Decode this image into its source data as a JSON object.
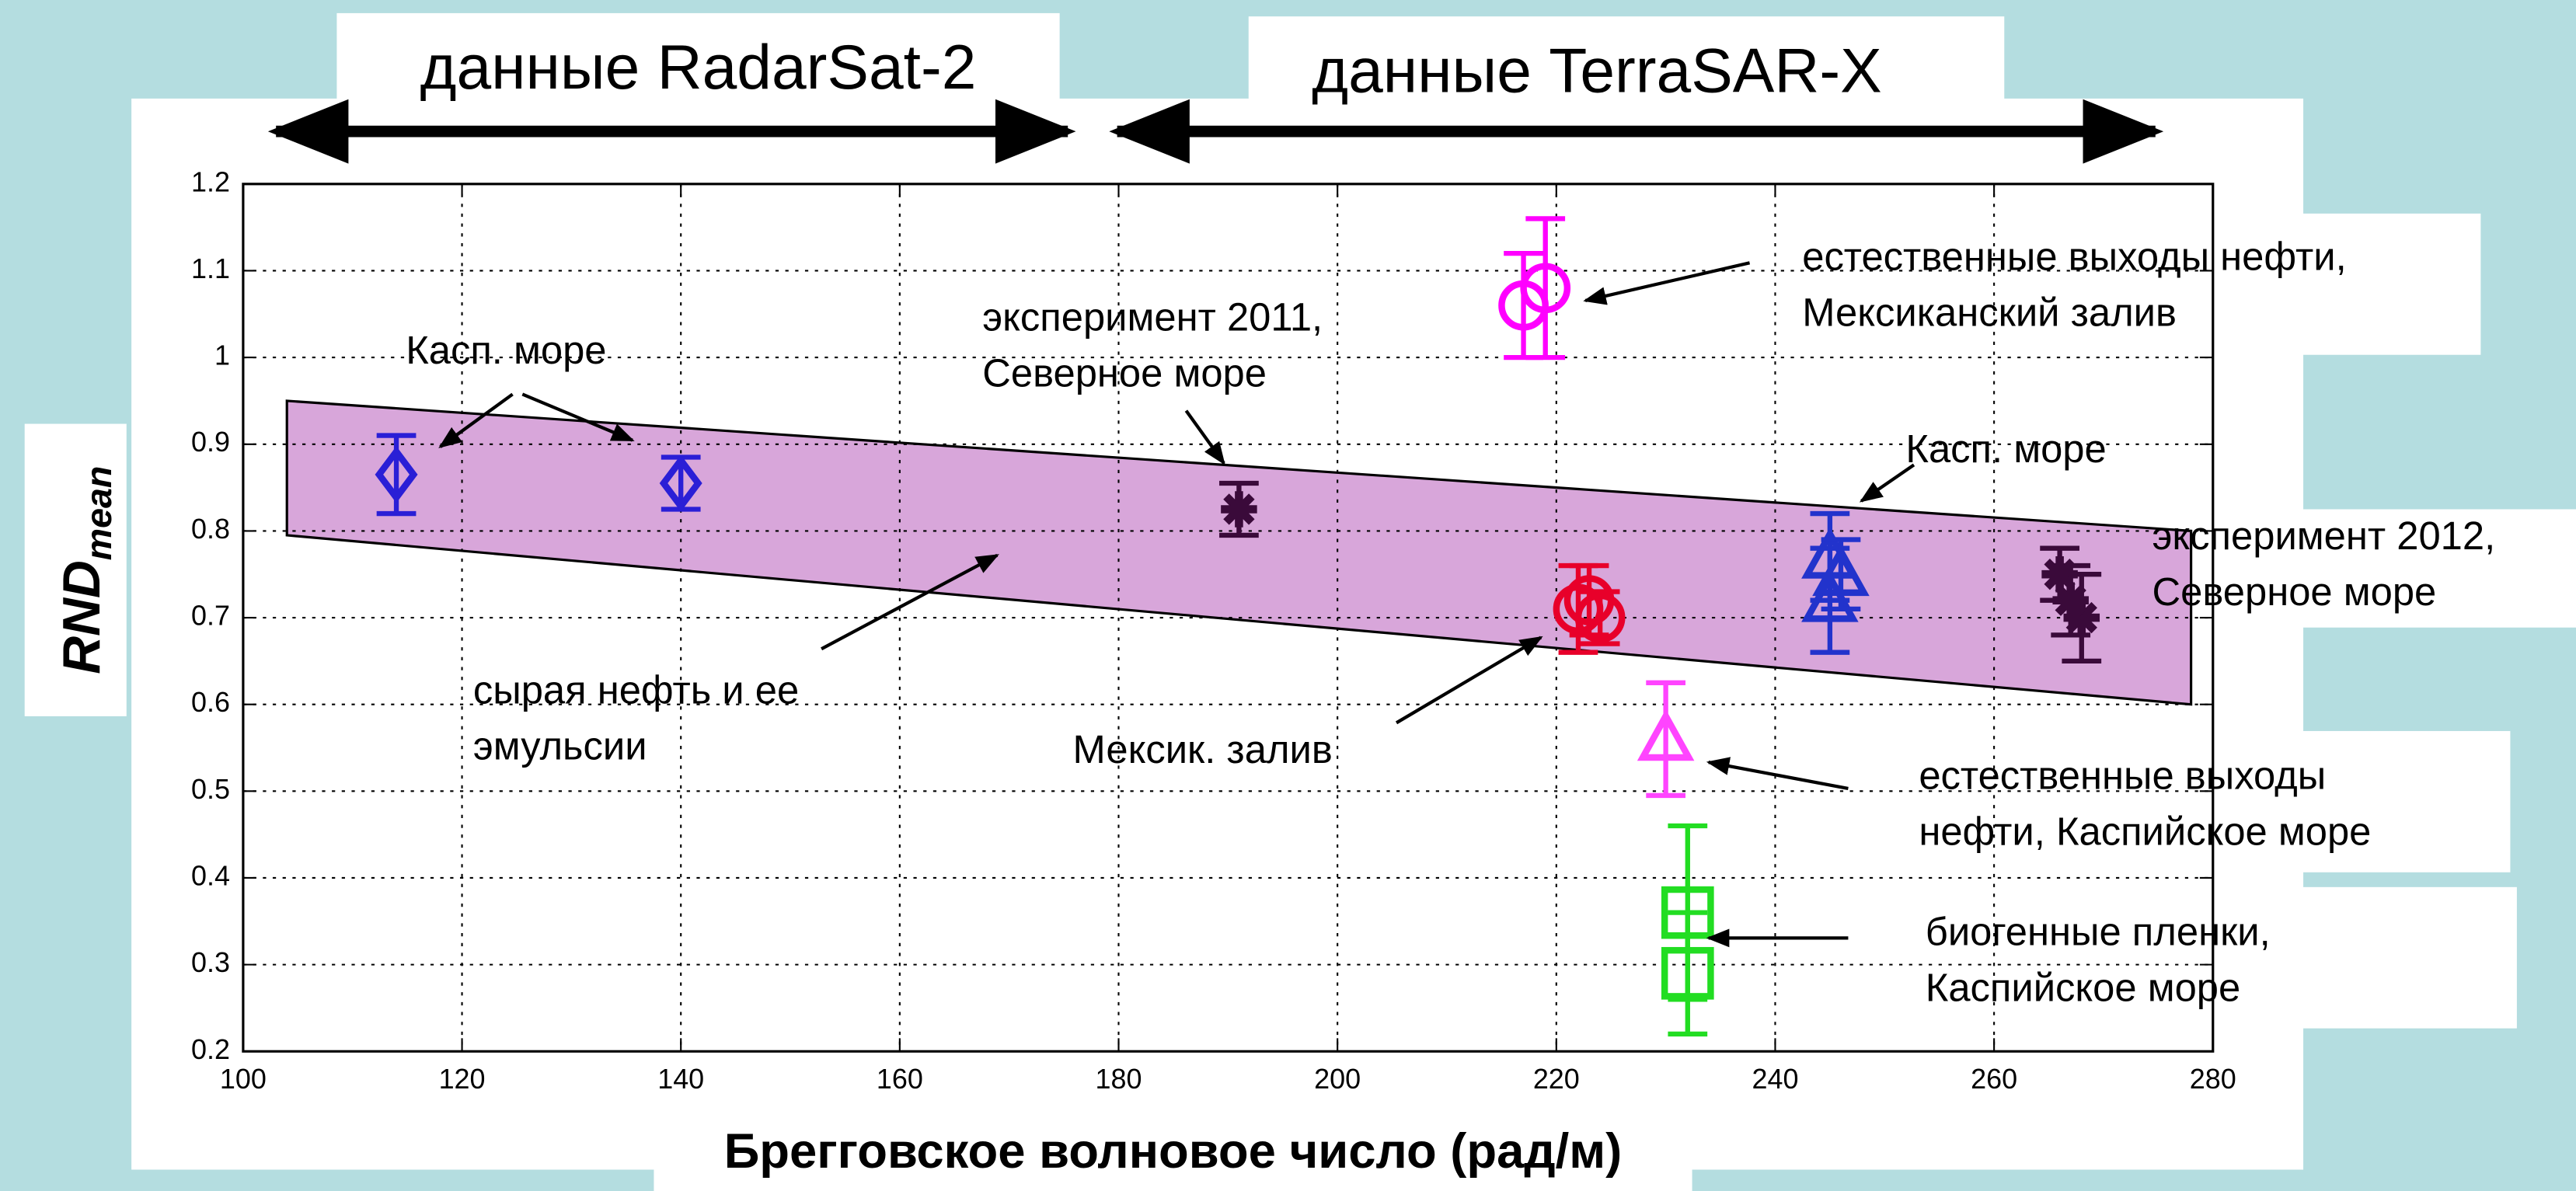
{
  "chart_data": {
    "type": "scatter",
    "header_labels": [
      "данные RadarSat-2",
      "данные TerraSAR-X"
    ],
    "xlabel": "Брегговское волновое число (рад/м)",
    "ylabel": {
      "main": "RND",
      "sub": "mean"
    },
    "xlim": [
      100,
      280
    ],
    "xticks": [
      100,
      120,
      140,
      160,
      180,
      200,
      220,
      240,
      260,
      280
    ],
    "ylim": [
      0.2,
      1.2
    ],
    "yticks": [
      0.2,
      0.3,
      0.4,
      0.5,
      0.6,
      0.7,
      0.8,
      0.9,
      1,
      1.1,
      1.2
    ],
    "grid": true,
    "band": {
      "color": "#d8a6da",
      "x": [
        104,
        278,
        278,
        104
      ],
      "values": [
        0.95,
        0.8,
        0.6,
        0.795
      ]
    },
    "series": [
      {
        "marker": "diamond",
        "color": "#2a1fd6",
        "x": [
          114,
          140
        ],
        "values": [
          0.865,
          0.855
        ],
        "errors": [
          0.045,
          0.03
        ]
      },
      {
        "marker": "star",
        "color": "#3a0a3a",
        "x": [
          191
        ],
        "values": [
          0.825
        ],
        "errors": [
          0.03
        ]
      },
      {
        "marker": "circle",
        "color": "#ff00ff",
        "x": [
          217,
          219
        ],
        "values": [
          1.06,
          1.08
        ],
        "errors": [
          0.06,
          0.08
        ]
      },
      {
        "marker": "circle",
        "color": "#e8002a",
        "x": [
          222,
          223,
          224
        ],
        "values": [
          0.71,
          0.72,
          0.7
        ],
        "errors": [
          0.05,
          0.04,
          0.03
        ]
      },
      {
        "marker": "triangle",
        "color": "#2233cc",
        "x": [
          245,
          245,
          246
        ],
        "values": [
          0.77,
          0.72,
          0.75
        ],
        "errors": [
          0.05,
          0.06,
          0.04
        ]
      },
      {
        "marker": "star",
        "color": "#3a0a3a",
        "x": [
          266,
          268,
          267
        ],
        "values": [
          0.75,
          0.7,
          0.72
        ],
        "errors": [
          0.03,
          0.05,
          0.04
        ]
      },
      {
        "marker": "triangle",
        "color": "#ff44ff",
        "x": [
          230
        ],
        "values": [
          0.56
        ],
        "errors": [
          0.065
        ]
      },
      {
        "marker": "square",
        "color": "#22dd22",
        "x": [
          232,
          232
        ],
        "values": [
          0.36,
          0.29
        ],
        "errors": [
          0.1,
          0.07
        ]
      }
    ],
    "annotations": [
      {
        "lines": [
          "Касп. море"
        ]
      },
      {
        "lines": [
          "эксперимент 2011,",
          "Северное море"
        ]
      },
      {
        "lines": [
          "естественные выходы нефти,",
          "Мексиканский залив"
        ]
      },
      {
        "lines": [
          "Касп. море"
        ]
      },
      {
        "lines": [
          "эксперимент 2012,",
          "Северное море"
        ]
      },
      {
        "lines": [
          "сырая нефть и ее",
          "эмульсии"
        ]
      },
      {
        "lines": [
          "Мексик. залив"
        ]
      },
      {
        "lines": [
          "естественные выходы",
          "нефти, Каспийское море"
        ]
      },
      {
        "lines": [
          "биогенные пленки,",
          "Каспийское море"
        ]
      }
    ]
  }
}
